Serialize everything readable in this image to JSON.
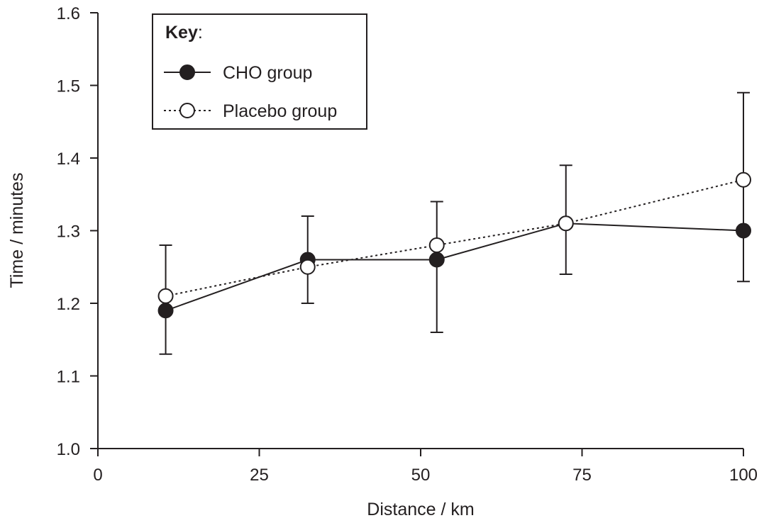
{
  "chart_data": {
    "type": "line",
    "xlabel": "Distance / km",
    "ylabel": "Time / minutes",
    "xlim": [
      0,
      100
    ],
    "ylim": [
      1.0,
      1.6
    ],
    "x_ticks": [
      "0",
      "25",
      "50",
      "75",
      "100"
    ],
    "y_ticks": [
      "1.0",
      "1.1",
      "1.2",
      "1.3",
      "1.4",
      "1.5",
      "1.6"
    ],
    "grid": false,
    "legend": {
      "title": "Key",
      "title_suffix": ":",
      "position": "top-left"
    },
    "series": [
      {
        "name": "CHO group",
        "marker": "filled-circle",
        "line_style": "solid",
        "color": "#231f20",
        "points": [
          {
            "x": 10.5,
            "y": 1.19,
            "err_low": 1.13,
            "err_high": 1.28
          },
          {
            "x": 32.5,
            "y": 1.26,
            "err_low": 1.2,
            "err_high": 1.32
          },
          {
            "x": 52.5,
            "y": 1.26,
            "err_low": 1.16,
            "err_high": 1.34
          },
          {
            "x": 72.5,
            "y": 1.31,
            "err_low": 1.24,
            "err_high": 1.39
          },
          {
            "x": 100,
            "y": 1.3,
            "err_low": 1.23,
            "err_high": 1.49
          }
        ]
      },
      {
        "name": "Placebo group",
        "marker": "open-circle",
        "line_style": "dotted",
        "color": "#231f20",
        "points": [
          {
            "x": 10.5,
            "y": 1.21
          },
          {
            "x": 32.5,
            "y": 1.25
          },
          {
            "x": 52.5,
            "y": 1.28
          },
          {
            "x": 72.5,
            "y": 1.31
          },
          {
            "x": 100,
            "y": 1.37
          }
        ]
      }
    ]
  }
}
